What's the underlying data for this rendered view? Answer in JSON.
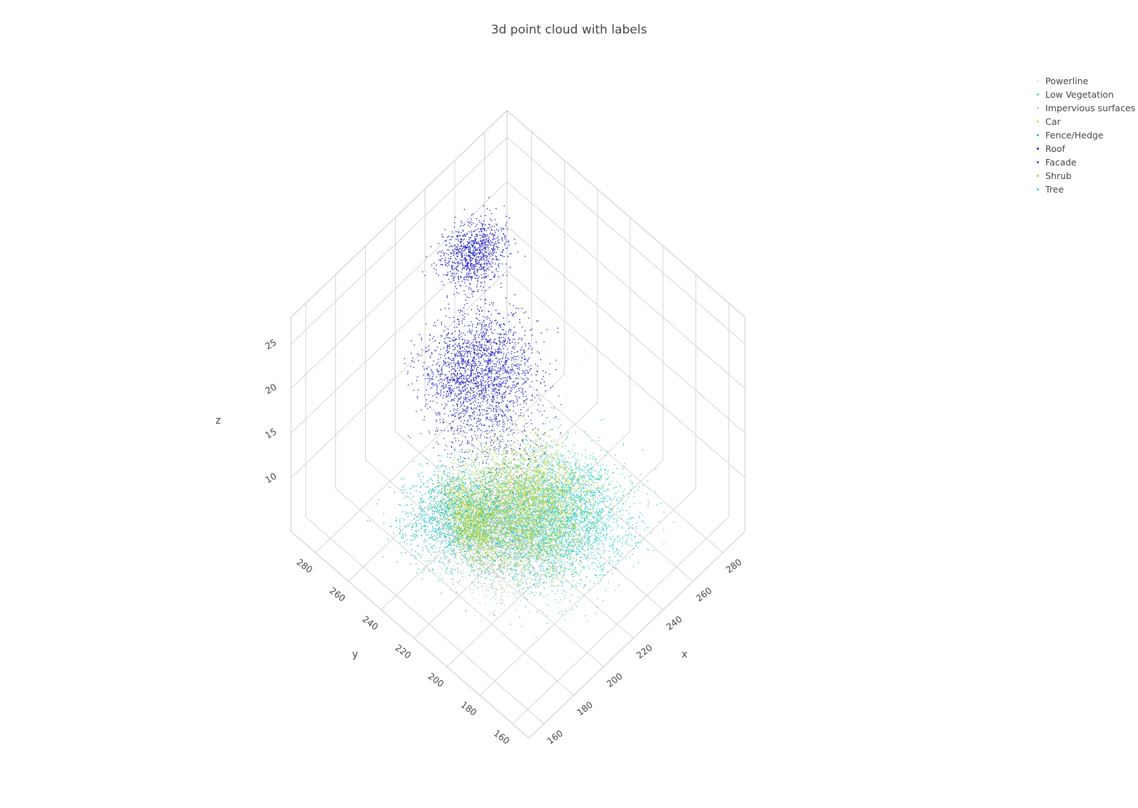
{
  "chart_data": {
    "type": "scatter",
    "title": "3d point cloud with labels",
    "xlabel": "x",
    "ylabel": "y",
    "zlabel": "z",
    "xlim": [
      150,
      295
    ],
    "ylim": [
      150,
      295
    ],
    "zlim": [
      4,
      28
    ],
    "x_ticks": [
      "160",
      "180",
      "200",
      "220",
      "240",
      "260",
      "280"
    ],
    "y_ticks": [
      "160",
      "180",
      "200",
      "220",
      "240",
      "260",
      "280"
    ],
    "z_ticks": [
      "10",
      "15",
      "20",
      "25"
    ],
    "x_tick_values": [
      160,
      180,
      200,
      220,
      240,
      260,
      280
    ],
    "y_tick_values": [
      160,
      180,
      200,
      220,
      240,
      260,
      280
    ],
    "z_tick_values": [
      10,
      15,
      20,
      25
    ],
    "grid": true,
    "legend_position": "top-right",
    "series": [
      {
        "name": "Powerline",
        "color": "#e8e8e8"
      },
      {
        "name": "Low Vegetation",
        "color": "#40d0c8"
      },
      {
        "name": "Impervious surfaces",
        "color": "#c8c8c8"
      },
      {
        "name": "Car",
        "color": "#d8d840"
      },
      {
        "name": "Fence/Hedge",
        "color": "#20c0c8"
      },
      {
        "name": "Roof",
        "color": "#2020c8"
      },
      {
        "name": "Facade",
        "color": "#4040b0"
      },
      {
        "name": "Shrub",
        "color": "#a0d040"
      },
      {
        "name": "Tree",
        "color": "#30d0d0"
      }
    ]
  }
}
